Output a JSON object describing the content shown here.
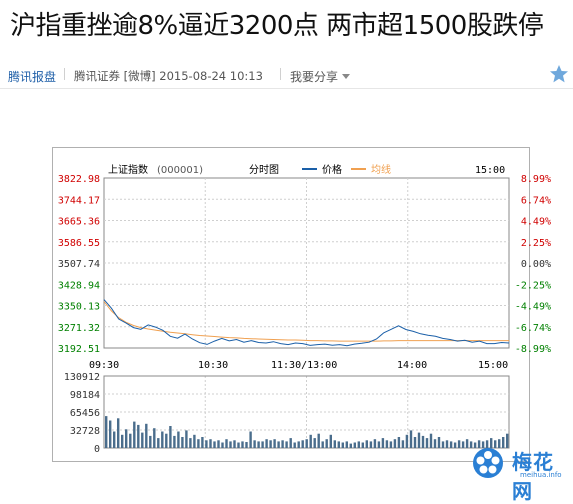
{
  "headline": "沪指重挫逾8%逼近3200点 两市超1500股跌停",
  "meta": {
    "source": "腾讯报盘",
    "byline": "腾讯证券 [微博] 2015-08-24 10:13",
    "share_label": "我要分享"
  },
  "chart_header": {
    "name": "上证指数",
    "code": "(000001)",
    "mode": "分时图",
    "legend_price": "价格",
    "legend_avg": "均线",
    "time": "15:00"
  },
  "colors": {
    "price_line": "#1a5fa8",
    "avg_line": "#f0a050",
    "volume_bar": "#4a6d8c",
    "up": "#d00000",
    "neutral": "#333333",
    "down": "#008000"
  },
  "chart_data": {
    "type": "line",
    "price_axis": [
      "3822.98",
      "3744.17",
      "3665.36",
      "3586.55",
      "3507.74",
      "3428.94",
      "3350.13",
      "3271.32",
      "3192.51"
    ],
    "pct_axis": [
      "8.99%",
      "6.74%",
      "4.49%",
      "2.25%",
      "0.00%",
      "-2.25%",
      "-4.49%",
      "-6.74%",
      "-8.99%"
    ],
    "ylim": [
      3192.51,
      3822.98
    ],
    "time_labels": [
      "09:30",
      "10:30",
      "11:30/13:00",
      "14:00",
      "15:00"
    ],
    "price_series": [
      3372,
      3340,
      3300,
      3285,
      3268,
      3262,
      3278,
      3270,
      3258,
      3236,
      3229,
      3244,
      3226,
      3212,
      3206,
      3218,
      3228,
      3219,
      3224,
      3214,
      3220,
      3213,
      3211,
      3216,
      3209,
      3205,
      3211,
      3209,
      3202,
      3205,
      3207,
      3203,
      3205,
      3201,
      3207,
      3210,
      3214,
      3226,
      3249,
      3262,
      3275,
      3261,
      3254,
      3245,
      3240,
      3236,
      3228,
      3224,
      3218,
      3221,
      3214,
      3218,
      3209,
      3209,
      3213,
      3211
    ],
    "avg_series": [
      3365,
      3330,
      3305,
      3288,
      3276,
      3268,
      3263,
      3259,
      3255,
      3251,
      3248,
      3245,
      3242,
      3239,
      3237,
      3235,
      3233,
      3231,
      3230,
      3228,
      3227,
      3226,
      3225,
      3224,
      3223,
      3222,
      3222,
      3221,
      3220,
      3220,
      3219,
      3219,
      3218,
      3218,
      3218,
      3218,
      3218,
      3218,
      3219,
      3219,
      3220,
      3220,
      3220,
      3220,
      3220,
      3220,
      3220,
      3220,
      3220,
      3220,
      3220,
      3220,
      3220,
      3220,
      3220,
      3220
    ],
    "volume_axis": [
      "130912",
      "98184",
      "65456",
      "32728",
      "0"
    ],
    "volume_ylim": [
      0,
      130912
    ],
    "volume_series": [
      58000,
      50000,
      30000,
      54000,
      24000,
      34000,
      26000,
      48000,
      42000,
      28000,
      44000,
      22000,
      36000,
      18000,
      30000,
      26000,
      40000,
      22000,
      30000,
      20000,
      32000,
      18000,
      24000,
      16000,
      20000,
      14000,
      16000,
      12000,
      14000,
      10000,
      16000,
      12000,
      14000,
      10000,
      12000,
      11000,
      30000,
      14000,
      12000,
      12000,
      16000,
      14000,
      16000,
      12000,
      14000,
      12000,
      18000,
      10000,
      12000,
      14000,
      16000,
      24000,
      18000,
      26000,
      12000,
      16000,
      24000,
      14000,
      12000,
      10000,
      12000,
      8000,
      10000,
      12000,
      10000,
      14000,
      12000,
      16000,
      12000,
      18000,
      14000,
      12000,
      16000,
      20000,
      14000,
      24000,
      32000,
      20000,
      28000,
      22000,
      18000,
      26000,
      16000,
      20000,
      12000,
      14000,
      12000,
      10000,
      14000,
      12000,
      16000,
      12000,
      10000,
      14000,
      12000,
      14000,
      18000,
      14000,
      16000,
      20000,
      26000
    ]
  },
  "logo": {
    "name": "梅花网",
    "url": "meihua.info"
  }
}
